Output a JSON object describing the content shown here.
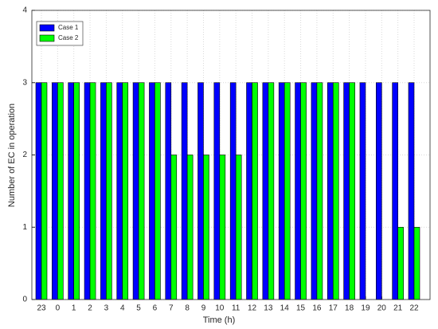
{
  "chart_data": {
    "type": "bar",
    "x_label": "Time (h)",
    "y_label": "Number of EC in operation",
    "categories": [
      "23",
      "0",
      "1",
      "2",
      "3",
      "4",
      "5",
      "6",
      "7",
      "8",
      "9",
      "10",
      "11",
      "12",
      "13",
      "14",
      "15",
      "16",
      "17",
      "18",
      "19",
      "20",
      "21",
      "22"
    ],
    "series": [
      {
        "name": "Case 1",
        "color": "#0000ff",
        "values": [
          3,
          3,
          3,
          3,
          3,
          3,
          3,
          3,
          3,
          3,
          3,
          3,
          3,
          3,
          3,
          3,
          3,
          3,
          3,
          3,
          3,
          3,
          3,
          3
        ]
      },
      {
        "name": "Case 2",
        "color": "#00ff00",
        "values": [
          3,
          3,
          3,
          3,
          3,
          3,
          3,
          3,
          2,
          2,
          2,
          2,
          2,
          3,
          3,
          3,
          3,
          3,
          3,
          3,
          0,
          0,
          1,
          1
        ]
      }
    ],
    "ylim": [
      0,
      4
    ],
    "yticks": [
      0,
      1,
      2,
      3,
      4
    ],
    "grid": true,
    "legend": "northwest"
  }
}
